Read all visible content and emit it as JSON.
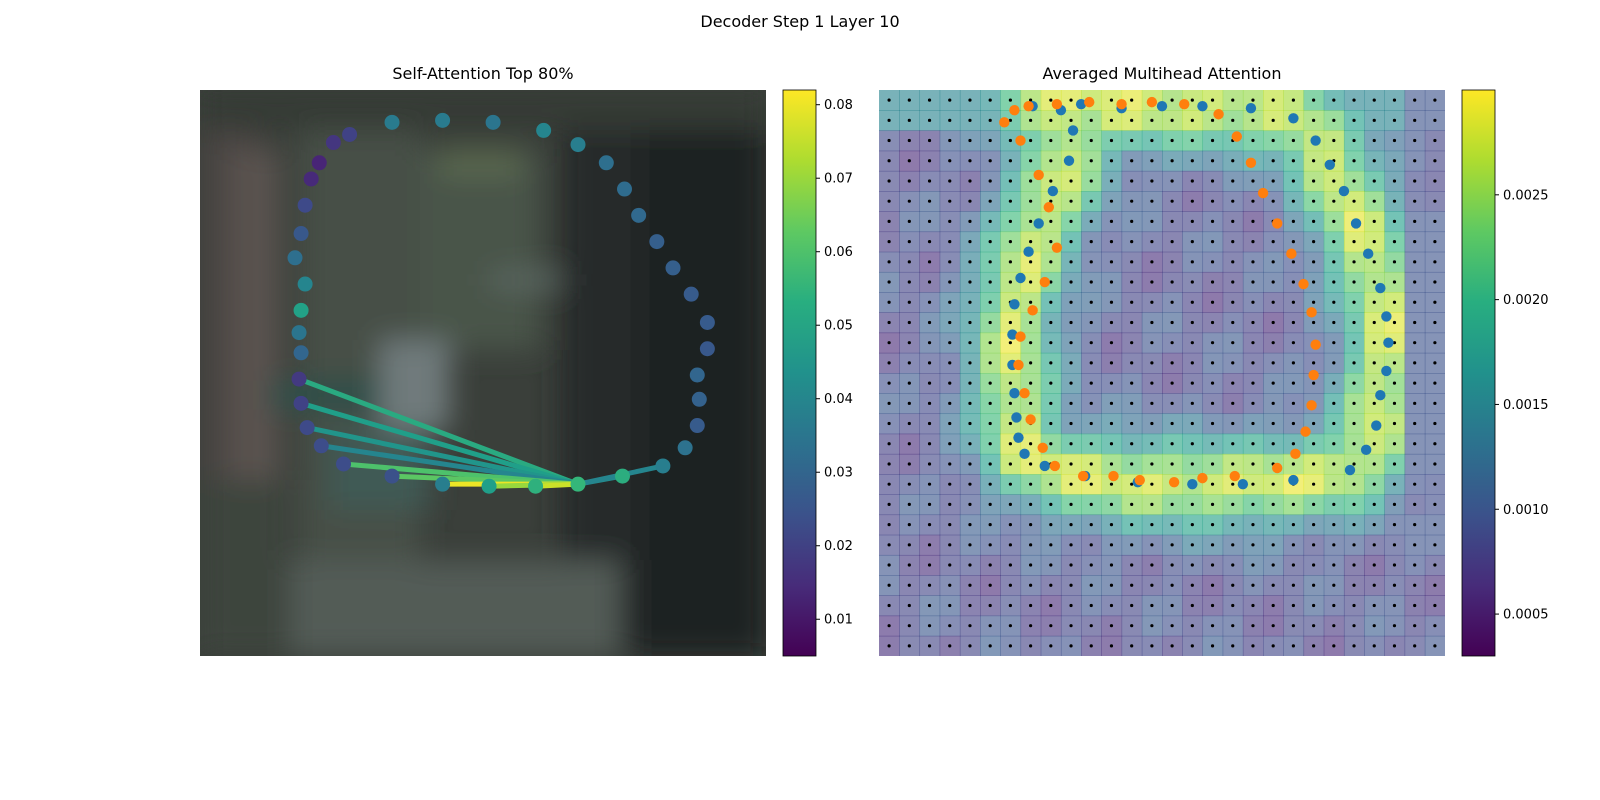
{
  "figure": {
    "title": "Decoder Step 1 Layer 10"
  },
  "chart_data": [
    {
      "type": "scatter",
      "title": "Self-Attention Top 80%",
      "background": "blurred dark photo (greens/greys)",
      "colormap": "viridis",
      "colorbar": {
        "range": [
          0.005,
          0.082
        ],
        "ticks": [
          "0.01",
          "0.02",
          "0.03",
          "0.04",
          "0.05",
          "0.06",
          "0.07",
          "0.08"
        ]
      },
      "points": [
        {
          "x": 9.5,
          "y": 1.6,
          "v": 0.037
        },
        {
          "x": 12.0,
          "y": 1.5,
          "v": 0.037
        },
        {
          "x": 14.5,
          "y": 1.6,
          "v": 0.035
        },
        {
          "x": 17.0,
          "y": 2.0,
          "v": 0.04
        },
        {
          "x": 18.7,
          "y": 2.7,
          "v": 0.038
        },
        {
          "x": 20.1,
          "y": 3.6,
          "v": 0.033
        },
        {
          "x": 21.0,
          "y": 4.9,
          "v": 0.032
        },
        {
          "x": 21.7,
          "y": 6.2,
          "v": 0.031
        },
        {
          "x": 22.6,
          "y": 7.5,
          "v": 0.028
        },
        {
          "x": 23.4,
          "y": 8.8,
          "v": 0.028
        },
        {
          "x": 24.3,
          "y": 10.1,
          "v": 0.027
        },
        {
          "x": 25.1,
          "y": 11.5,
          "v": 0.027
        },
        {
          "x": 25.1,
          "y": 12.8,
          "v": 0.026
        },
        {
          "x": 24.6,
          "y": 14.1,
          "v": 0.03
        },
        {
          "x": 24.7,
          "y": 15.3,
          "v": 0.029
        },
        {
          "x": 24.6,
          "y": 16.6,
          "v": 0.027
        },
        {
          "x": 24.0,
          "y": 17.7,
          "v": 0.034
        },
        {
          "x": 22.9,
          "y": 18.6,
          "v": 0.038
        },
        {
          "x": 20.9,
          "y": 19.1,
          "v": 0.053
        },
        {
          "x": 18.7,
          "y": 19.5,
          "v": 0.056
        },
        {
          "x": 16.6,
          "y": 19.6,
          "v": 0.054
        },
        {
          "x": 14.3,
          "y": 19.6,
          "v": 0.048
        },
        {
          "x": 12.0,
          "y": 19.5,
          "v": 0.038
        },
        {
          "x": 9.5,
          "y": 19.1,
          "v": 0.024
        },
        {
          "x": 7.1,
          "y": 18.5,
          "v": 0.023
        },
        {
          "x": 6.0,
          "y": 17.6,
          "v": 0.023
        },
        {
          "x": 5.3,
          "y": 16.7,
          "v": 0.022
        },
        {
          "x": 5.0,
          "y": 15.5,
          "v": 0.02
        },
        {
          "x": 4.9,
          "y": 14.3,
          "v": 0.018
        },
        {
          "x": 5.0,
          "y": 13.0,
          "v": 0.03
        },
        {
          "x": 4.9,
          "y": 12.0,
          "v": 0.035
        },
        {
          "x": 5.0,
          "y": 10.9,
          "v": 0.049
        },
        {
          "x": 5.2,
          "y": 9.6,
          "v": 0.04
        },
        {
          "x": 4.7,
          "y": 8.3,
          "v": 0.033
        },
        {
          "x": 5.0,
          "y": 7.1,
          "v": 0.026
        },
        {
          "x": 5.2,
          "y": 5.7,
          "v": 0.022
        },
        {
          "x": 5.5,
          "y": 4.4,
          "v": 0.014
        },
        {
          "x": 5.9,
          "y": 3.6,
          "v": 0.013
        },
        {
          "x": 6.6,
          "y": 2.6,
          "v": 0.017
        },
        {
          "x": 7.4,
          "y": 2.2,
          "v": 0.02
        }
      ],
      "lines": [
        {
          "from": 19,
          "to": 28,
          "v": 0.052
        },
        {
          "from": 19,
          "to": 27,
          "v": 0.048
        },
        {
          "from": 19,
          "to": 26,
          "v": 0.045
        },
        {
          "from": 19,
          "to": 25,
          "v": 0.04
        },
        {
          "from": 19,
          "to": 24,
          "v": 0.06
        },
        {
          "from": 19,
          "to": 23,
          "v": 0.062
        },
        {
          "from": 19,
          "to": 22,
          "v": 0.08
        },
        {
          "from": 19,
          "to": 21,
          "v": 0.07
        },
        {
          "from": 19,
          "to": 20,
          "v": 0.076
        },
        {
          "from": 19,
          "to": 18,
          "v": 0.042
        },
        {
          "from": 19,
          "to": 17,
          "v": 0.04
        }
      ]
    },
    {
      "type": "heatmap",
      "title": "Averaged Multihead Attention",
      "colormap": "viridis",
      "grid": [
        28,
        28
      ],
      "colorbar": {
        "range": [
          0.0003,
          0.003
        ],
        "ticks": [
          "0.0005",
          "0.0010",
          "0.0015",
          "0.0020",
          "0.0025"
        ]
      },
      "overlay_points": [
        {
          "name": "",
          "color": "#1f77b4",
          "points": [
            [
              7.6,
              0.8
            ],
            [
              10.0,
              0.7
            ],
            [
              12.0,
              0.9
            ],
            [
              14.0,
              0.8
            ],
            [
              16.0,
              0.8
            ],
            [
              18.4,
              0.9
            ],
            [
              20.5,
              1.4
            ],
            [
              21.6,
              2.5
            ],
            [
              22.3,
              3.7
            ],
            [
              23.0,
              5.0
            ],
            [
              23.6,
              6.6
            ],
            [
              24.2,
              8.1
            ],
            [
              24.8,
              9.8
            ],
            [
              25.1,
              11.2
            ],
            [
              25.2,
              12.5
            ],
            [
              25.1,
              13.9
            ],
            [
              24.8,
              15.1
            ],
            [
              24.6,
              16.6
            ],
            [
              24.1,
              17.8
            ],
            [
              23.3,
              18.8
            ],
            [
              20.5,
              19.3
            ],
            [
              18.0,
              19.5
            ],
            [
              15.5,
              19.5
            ],
            [
              12.8,
              19.4
            ],
            [
              10.2,
              19.1
            ],
            [
              8.2,
              18.6
            ],
            [
              7.2,
              18.0
            ],
            [
              6.9,
              17.2
            ],
            [
              6.8,
              16.2
            ],
            [
              6.7,
              15.0
            ],
            [
              6.6,
              13.6
            ],
            [
              6.6,
              12.1
            ],
            [
              6.7,
              10.6
            ],
            [
              7.0,
              9.3
            ],
            [
              7.4,
              8.0
            ],
            [
              7.9,
              6.6
            ],
            [
              8.6,
              5.0
            ],
            [
              9.4,
              3.5
            ],
            [
              9.6,
              2.0
            ],
            [
              9.0,
              1.0
            ]
          ]
        },
        {
          "name": "",
          "color": "#ff7f0e",
          "points": [
            [
              6.7,
              1.0
            ],
            [
              7.4,
              0.8
            ],
            [
              8.8,
              0.7
            ],
            [
              10.4,
              0.6
            ],
            [
              12.0,
              0.7
            ],
            [
              13.5,
              0.6
            ],
            [
              15.1,
              0.7
            ],
            [
              16.8,
              1.2
            ],
            [
              17.7,
              2.3
            ],
            [
              18.4,
              3.6
            ],
            [
              19.0,
              5.1
            ],
            [
              19.7,
              6.6
            ],
            [
              20.4,
              8.1
            ],
            [
              21.0,
              9.6
            ],
            [
              21.4,
              11.0
            ],
            [
              21.6,
              12.6
            ],
            [
              21.5,
              14.1
            ],
            [
              21.4,
              15.6
            ],
            [
              21.1,
              16.9
            ],
            [
              20.6,
              18.0
            ],
            [
              19.7,
              18.7
            ],
            [
              17.6,
              19.1
            ],
            [
              16.0,
              19.2
            ],
            [
              14.6,
              19.4
            ],
            [
              12.9,
              19.3
            ],
            [
              11.6,
              19.1
            ],
            [
              10.1,
              19.1
            ],
            [
              8.7,
              18.6
            ],
            [
              8.1,
              17.7
            ],
            [
              7.5,
              16.3
            ],
            [
              7.2,
              15.0
            ],
            [
              6.9,
              13.6
            ],
            [
              7.0,
              12.2
            ],
            [
              7.6,
              10.9
            ],
            [
              8.2,
              9.5
            ],
            [
              8.8,
              7.8
            ],
            [
              8.4,
              5.8
            ],
            [
              7.9,
              4.2
            ],
            [
              7.0,
              2.5
            ],
            [
              6.2,
              1.6
            ]
          ]
        }
      ]
    }
  ]
}
